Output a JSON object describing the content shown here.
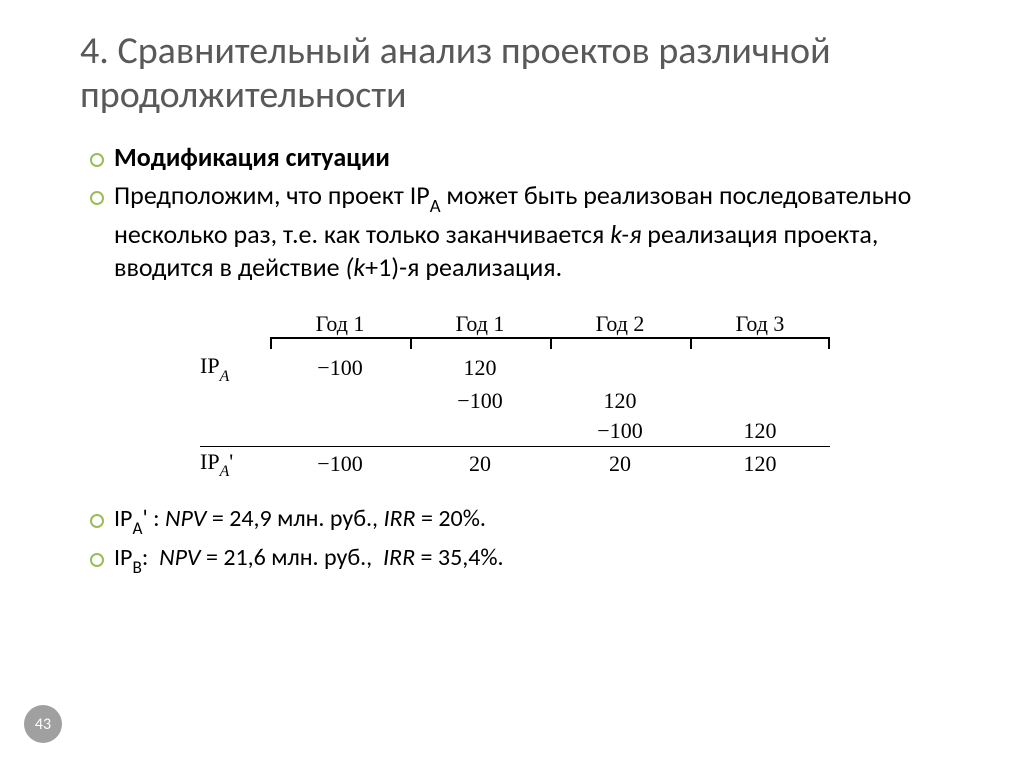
{
  "title": "4. Сравнительный анализ проектов различной продолжительности",
  "bullets_top": [
    {
      "html": "<span class='bold'>Модификация ситуации</span>"
    },
    {
      "html": "Предположим, что проект <span class='smallcaps'>IP</span><span class='sub'>A</span> может быть реализован последовательно несколько раз, т.е. как только заканчивается <span class='italic'>k-я</span> реализация проекта, вводится в действие <span class='italic'>(k</span>+1)-я реализация."
    }
  ],
  "timeline": {
    "headers": [
      "Год 1",
      "Год 1",
      "Год 2",
      "Год 3"
    ],
    "label_A": "IP<span class='sub italic'>A</span>",
    "label_Ap": "IP<span class='sub italic'>A</span>'",
    "rows_A": [
      [
        "−100",
        "120",
        "",
        ""
      ],
      [
        "",
        "−100",
        "120",
        ""
      ],
      [
        "",
        "",
        "−100",
        "120"
      ]
    ],
    "row_Ap": [
      "−100",
      "20",
      "20",
      "120"
    ]
  },
  "bullets_bottom": [
    {
      "html": "<span class='smallcaps'>IP</span><span class='sub'>A</span>' : <span class='italic'>NPV</span> = 24,9 млн. руб., <span class='italic'>IRR</span> = 20%."
    },
    {
      "html": "<span class='smallcaps'>IP</span><span class='sub'>B</span>: &nbsp;<span class='italic'>NPV</span> = 21,6 млн. руб., &nbsp;<span class='italic'>IRR</span> = 35,4%."
    }
  ],
  "page_number": "43",
  "colors": {
    "title": "#595959",
    "bullet_ring": "#9bbb59",
    "badge": "#a0a0a0"
  }
}
